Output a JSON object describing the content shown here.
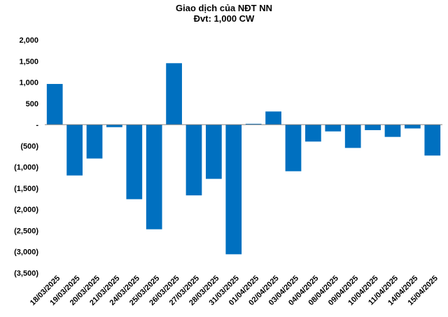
{
  "chart_data": {
    "type": "bar",
    "title": "Giao dịch của NĐT NN",
    "subtitle": "Đvt: 1,000 CW",
    "xlabel": "",
    "ylabel": "",
    "categories": [
      "18/03/2025",
      "19/03/2025",
      "20/03/2025",
      "21/03/2025",
      "24/03/2025",
      "25/03/2025",
      "26/03/2025",
      "27/03/2025",
      "28/03/2025",
      "31/03/2025",
      "01/04/2025",
      "02/04/2025",
      "03/04/2025",
      "04/04/2025",
      "08/04/2025",
      "09/04/2025",
      "10/04/2025",
      "11/04/2025",
      "14/04/2025",
      "15/04/2025"
    ],
    "values": [
      960,
      -1200,
      -800,
      -60,
      -1760,
      -2470,
      1450,
      -1670,
      -1280,
      -3060,
      20,
      310,
      -1100,
      -400,
      -160,
      -550,
      -130,
      -290,
      -90,
      -730
    ],
    "ylim": [
      -3500,
      2000
    ],
    "yticks": [
      2000,
      1500,
      1000,
      500,
      0,
      -500,
      -1000,
      -1500,
      -2000,
      -2500,
      -3000,
      -3500
    ],
    "ytick_labels": [
      "2,000",
      "1,500",
      "1,000",
      "500",
      "-",
      "(500)",
      "(1,000)",
      "(1,500)",
      "(2,000)",
      "(2,500)",
      "(3,000)",
      "(3,500)"
    ],
    "grid": false,
    "legend": "none",
    "bar_color": "#0070C0"
  }
}
